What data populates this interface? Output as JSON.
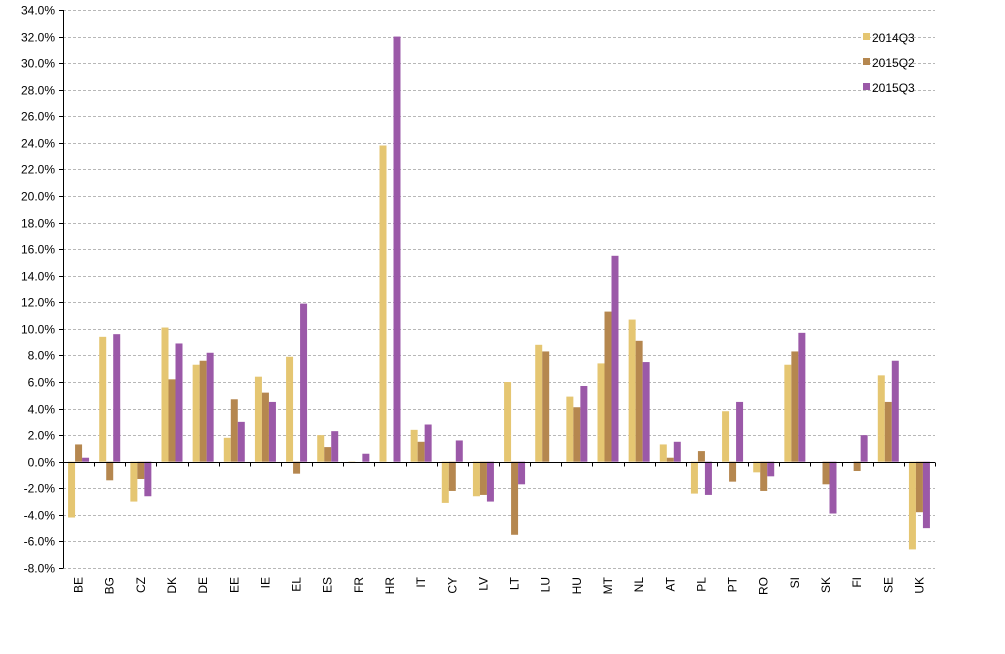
{
  "chart_data": {
    "type": "bar",
    "title": "",
    "xlabel": "",
    "ylabel": "",
    "categories": [
      "BE",
      "BG",
      "CZ",
      "DK",
      "DE",
      "EE",
      "IE",
      "EL",
      "ES",
      "FR",
      "HR",
      "IT",
      "CY",
      "LV",
      "LT",
      "LU",
      "HU",
      "MT",
      "NL",
      "AT",
      "PL",
      "PT",
      "RO",
      "SI",
      "SK",
      "FI",
      "SE",
      "UK"
    ],
    "series": [
      {
        "name": "2014Q3",
        "color": "#e5c672",
        "values": [
          -4.2,
          9.4,
          -3.0,
          10.1,
          7.3,
          1.8,
          6.4,
          7.9,
          2.0,
          -0.1,
          23.8,
          2.4,
          -3.1,
          -2.6,
          6.0,
          8.8,
          4.9,
          7.4,
          10.7,
          1.3,
          -2.4,
          3.8,
          -0.8,
          7.3,
          0.0,
          0.0,
          6.5,
          -6.6
        ]
      },
      {
        "name": "2015Q2",
        "color": "#b5874f",
        "values": [
          1.3,
          -1.4,
          -1.3,
          6.2,
          7.6,
          4.7,
          5.2,
          -0.9,
          1.1,
          0.0,
          0.0,
          1.5,
          -2.2,
          -2.5,
          -5.5,
          8.3,
          4.1,
          11.3,
          9.1,
          0.3,
          0.8,
          -1.5,
          -2.2,
          8.3,
          -1.7,
          -0.7,
          4.5,
          -3.8
        ]
      },
      {
        "name": "2015Q3",
        "color": "#9b59a8",
        "values": [
          0.3,
          9.6,
          -2.6,
          8.9,
          8.2,
          3.0,
          4.5,
          11.9,
          2.3,
          0.6,
          32.0,
          2.8,
          1.6,
          -3.0,
          -1.7,
          0.0,
          5.7,
          15.5,
          7.5,
          1.5,
          -2.5,
          4.5,
          -1.1,
          9.7,
          -3.9,
          2.0,
          7.6,
          -5.0
        ]
      }
    ],
    "ylim": [
      -8.0,
      34.0
    ],
    "ytick_step": 2.0,
    "ytick_format": "percent-1dp",
    "grid": true,
    "legend_position": "top-right"
  }
}
